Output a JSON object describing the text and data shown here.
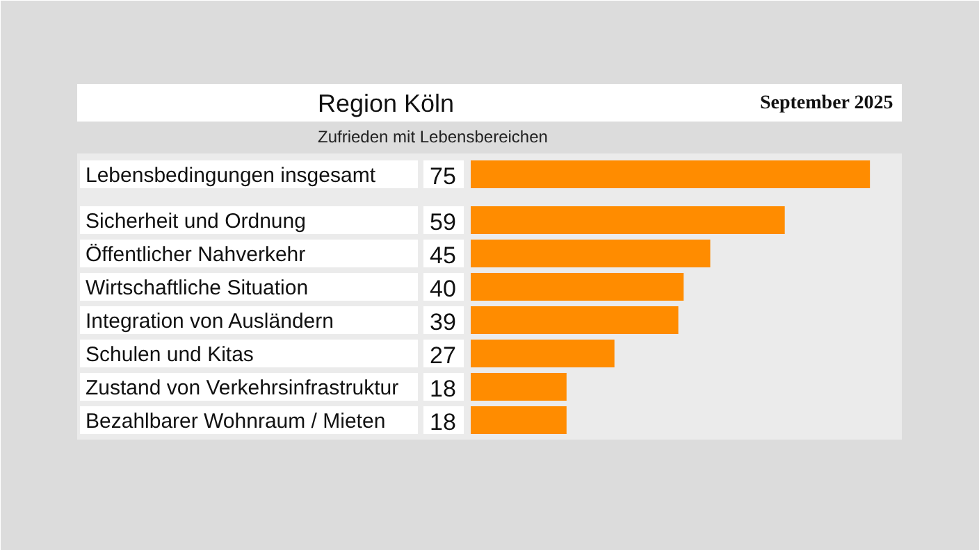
{
  "chart_data": {
    "type": "bar",
    "orientation": "horizontal",
    "title": "Region Köln",
    "subtitle": "Zufrieden mit Lebensbereichen",
    "annotations": [
      "September 2025"
    ],
    "categories": [
      "Lebensbedingungen insgesamt",
      "Sicherheit und Ordnung",
      "Öffentlicher Nahverkehr",
      "Wirtschaftliche Situation",
      "Integration von Ausländern",
      "Schulen und Kitas",
      "Zustand von Verkehrsinfrastruktur",
      "Bezahlbarer Wohnraum / Mieten"
    ],
    "values": [
      75,
      59,
      45,
      40,
      39,
      27,
      18,
      18
    ],
    "color": "#ff8c00",
    "data_labels": true,
    "grid": false
  }
}
